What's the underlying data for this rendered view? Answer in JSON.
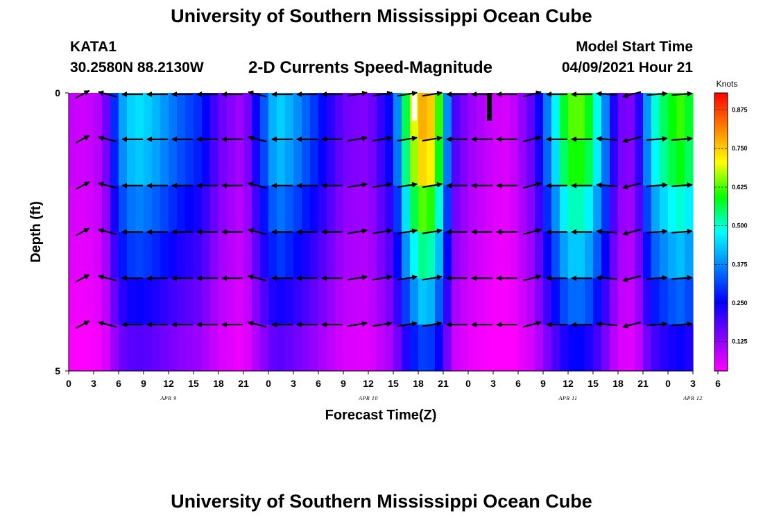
{
  "header": {
    "title": "University of Southern Mississippi Ocean Cube",
    "station": "KATA1",
    "coordinates": "30.2580N  88.2130W",
    "subtitle": "2-D Currents Speed-Magnitude",
    "model_label": "Model Start Time",
    "model_time": "04/09/2021 Hour 21"
  },
  "footer": {
    "title": "University of Southern Mississippi Ocean Cube"
  },
  "chart_data": {
    "type": "heatmap",
    "title": "2-D Currents Speed-Magnitude",
    "xlabel": "Forecast Time(Z)",
    "ylabel": "Depth (ft)",
    "ylim": [
      0,
      5
    ],
    "y_ticks": [
      "0",
      "5"
    ],
    "x_tick_labels": [
      "0",
      "3",
      "6",
      "9",
      "12",
      "15",
      "18",
      "21",
      "0",
      "3",
      "6",
      "9",
      "12",
      "15",
      "18",
      "21",
      "0",
      "3",
      "6",
      "9",
      "12",
      "15",
      "18",
      "21",
      "0",
      "3",
      "6"
    ],
    "date_labels": [
      {
        "label": "APR 9",
        "hour": 12
      },
      {
        "label": "APR 10",
        "hour": 36
      },
      {
        "label": "APR 11",
        "hour": 60
      },
      {
        "label": "APR 12",
        "hour": 75
      }
    ],
    "colorbar": {
      "unit": "Knots",
      "range": [
        0.03,
        0.93
      ],
      "ticks": [
        "0.125",
        "0.250",
        "0.375",
        "0.500",
        "0.625",
        "0.750",
        "0.875"
      ],
      "colors": [
        "#ff00ff",
        "#7f00ff",
        "#0000ff",
        "#0080ff",
        "#00ffff",
        "#00ff00",
        "#ffff00",
        "#ff8000",
        "#ff0000"
      ]
    },
    "depth_layers": 6,
    "speed_profile": [
      {
        "hour": 0,
        "speed": 0.08
      },
      {
        "hour": 2,
        "speed": 0.07
      },
      {
        "hour": 4,
        "speed": 0.1
      },
      {
        "hour": 5,
        "speed": 0.2
      },
      {
        "hour": 6,
        "speed": 0.36
      },
      {
        "hour": 8,
        "speed": 0.44
      },
      {
        "hour": 10,
        "speed": 0.41
      },
      {
        "hour": 13,
        "speed": 0.33
      },
      {
        "hour": 16,
        "speed": 0.27
      },
      {
        "hour": 18,
        "speed": 0.16
      },
      {
        "hour": 21,
        "speed": 0.1
      },
      {
        "hour": 23,
        "speed": 0.28
      },
      {
        "hour": 25,
        "speed": 0.43
      },
      {
        "hour": 27,
        "speed": 0.38
      },
      {
        "hour": 30,
        "speed": 0.27
      },
      {
        "hour": 33,
        "speed": 0.15
      },
      {
        "hour": 36,
        "speed": 0.13
      },
      {
        "hour": 39,
        "speed": 0.27
      },
      {
        "hour": 41,
        "speed": 0.62
      },
      {
        "hour": 43,
        "speed": 0.78
      },
      {
        "hour": 45,
        "speed": 0.52
      },
      {
        "hour": 46,
        "speed": 0.2
      },
      {
        "hour": 48,
        "speed": 0.12
      },
      {
        "hour": 51,
        "speed": 0.07
      },
      {
        "hour": 53,
        "speed": 0.06
      },
      {
        "hour": 56,
        "speed": 0.18
      },
      {
        "hour": 58,
        "speed": 0.4
      },
      {
        "hour": 60,
        "speed": 0.6
      },
      {
        "hour": 62,
        "speed": 0.6
      },
      {
        "hour": 64,
        "speed": 0.42
      },
      {
        "hour": 66,
        "speed": 0.15
      },
      {
        "hour": 68,
        "speed": 0.13
      },
      {
        "hour": 70,
        "speed": 0.45
      },
      {
        "hour": 72,
        "speed": 0.55
      },
      {
        "hour": 74,
        "speed": 0.6
      },
      {
        "hour": 75,
        "speed": 0.5
      }
    ],
    "depth_factor": [
      1.05,
      1.0,
      0.85,
      0.72,
      0.58,
      0.42
    ],
    "current_direction_deg": [
      {
        "hour": 0,
        "dir": 40
      },
      {
        "hour": 2,
        "dir": 300
      },
      {
        "hour": 6,
        "dir": 270
      },
      {
        "hour": 18,
        "dir": 270
      },
      {
        "hour": 19.5,
        "dir": 300
      },
      {
        "hour": 23,
        "dir": 270
      },
      {
        "hour": 33,
        "dir": 270
      },
      {
        "hour": 34,
        "dir": 70
      },
      {
        "hour": 44,
        "dir": 80
      },
      {
        "hour": 45,
        "dir": 270
      },
      {
        "hour": 52,
        "dir": 270
      },
      {
        "hour": 53,
        "dir": 75
      },
      {
        "hour": 55,
        "dir": 60
      },
      {
        "hour": 56,
        "dir": 270
      },
      {
        "hour": 63,
        "dir": 280
      },
      {
        "hour": 65,
        "dir": 210
      },
      {
        "hour": 67,
        "dir": 240
      },
      {
        "hour": 70,
        "dir": 80
      },
      {
        "hour": 75,
        "dir": 70
      }
    ],
    "markers": [
      {
        "hour": 41.5,
        "color": "#ffffff"
      },
      {
        "hour": 50.5,
        "color": "#000000"
      }
    ]
  }
}
